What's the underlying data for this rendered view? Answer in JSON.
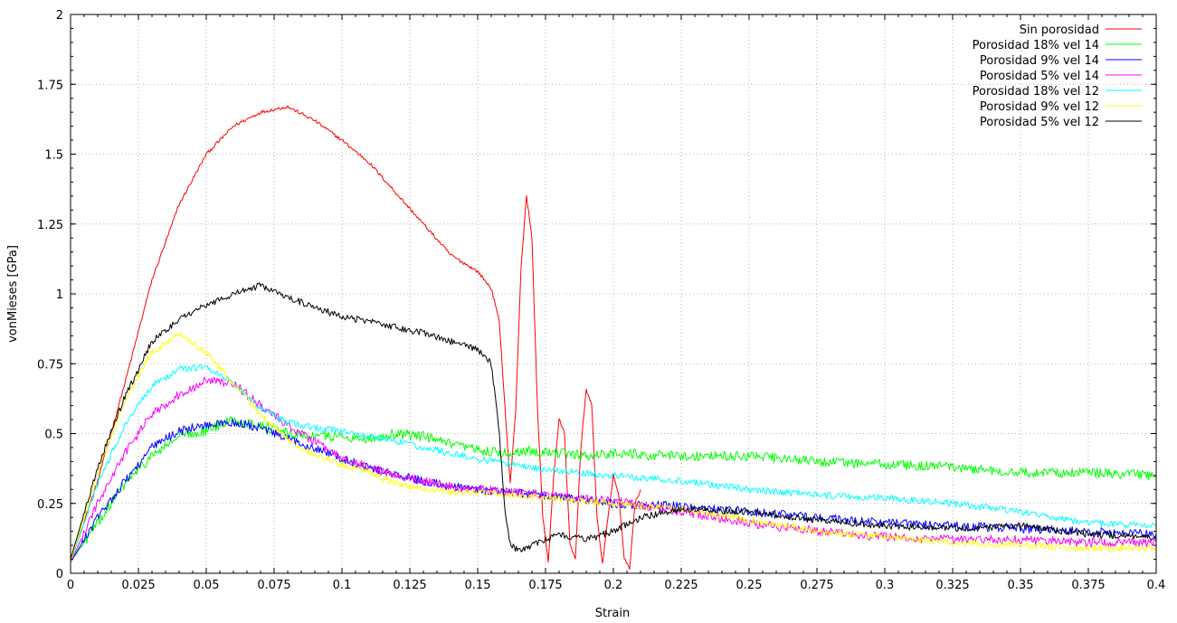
{
  "chart_data": {
    "type": "line",
    "title": "",
    "xlabel": "Strain",
    "ylabel": "vonMieses [GPa]",
    "xlim": [
      0,
      0.4
    ],
    "ylim": [
      0,
      2
    ],
    "grid": true,
    "legend_position": "top-right",
    "x_ticks": [
      "0",
      "0.025",
      "0.05",
      "0.075",
      "0.1",
      "0.125",
      "0.15",
      "0.175",
      "0.2",
      "0.225",
      "0.25",
      "0.275",
      "0.3",
      "0.325",
      "0.35",
      "0.375",
      "0.4"
    ],
    "y_ticks": [
      "0",
      "0.25",
      "0.5",
      "0.75",
      "1",
      "1.25",
      "1.5",
      "1.75",
      "2"
    ],
    "series": [
      {
        "name": "Sin porosidad",
        "color": "#ff0000",
        "noise": 0.006,
        "points": [
          [
            0,
            0.04
          ],
          [
            0.01,
            0.33
          ],
          [
            0.02,
            0.68
          ],
          [
            0.03,
            1.05
          ],
          [
            0.04,
            1.32
          ],
          [
            0.05,
            1.5
          ],
          [
            0.06,
            1.6
          ],
          [
            0.07,
            1.65
          ],
          [
            0.08,
            1.67
          ],
          [
            0.09,
            1.62
          ],
          [
            0.1,
            1.55
          ],
          [
            0.11,
            1.47
          ],
          [
            0.12,
            1.36
          ],
          [
            0.13,
            1.25
          ],
          [
            0.14,
            1.14
          ],
          [
            0.15,
            1.08
          ],
          [
            0.155,
            1.02
          ],
          [
            0.158,
            0.9
          ],
          [
            0.16,
            0.6
          ],
          [
            0.162,
            0.32
          ],
          [
            0.164,
            0.58
          ],
          [
            0.166,
            1.1
          ],
          [
            0.168,
            1.35
          ],
          [
            0.17,
            1.2
          ],
          [
            0.172,
            0.6
          ],
          [
            0.174,
            0.2
          ],
          [
            0.176,
            0.04
          ],
          [
            0.178,
            0.35
          ],
          [
            0.18,
            0.55
          ],
          [
            0.182,
            0.5
          ],
          [
            0.184,
            0.1
          ],
          [
            0.186,
            0.05
          ],
          [
            0.188,
            0.45
          ],
          [
            0.19,
            0.66
          ],
          [
            0.192,
            0.6
          ],
          [
            0.194,
            0.2
          ],
          [
            0.196,
            0.03
          ],
          [
            0.198,
            0.2
          ],
          [
            0.2,
            0.35
          ],
          [
            0.202,
            0.28
          ],
          [
            0.204,
            0.05
          ],
          [
            0.206,
            0.02
          ],
          [
            0.208,
            0.25
          ],
          [
            0.21,
            0.3
          ]
        ]
      },
      {
        "name": "Porosidad 18% vel 14",
        "color": "#00ff00",
        "noise": 0.018,
        "points": [
          [
            0,
            0.04
          ],
          [
            0.01,
            0.18
          ],
          [
            0.02,
            0.32
          ],
          [
            0.03,
            0.42
          ],
          [
            0.04,
            0.49
          ],
          [
            0.05,
            0.51
          ],
          [
            0.06,
            0.55
          ],
          [
            0.07,
            0.53
          ],
          [
            0.08,
            0.5
          ],
          [
            0.09,
            0.49
          ],
          [
            0.1,
            0.49
          ],
          [
            0.11,
            0.48
          ],
          [
            0.12,
            0.5
          ],
          [
            0.13,
            0.49
          ],
          [
            0.14,
            0.46
          ],
          [
            0.15,
            0.44
          ],
          [
            0.16,
            0.43
          ],
          [
            0.17,
            0.44
          ],
          [
            0.18,
            0.43
          ],
          [
            0.19,
            0.42
          ],
          [
            0.2,
            0.43
          ],
          [
            0.22,
            0.42
          ],
          [
            0.25,
            0.42
          ],
          [
            0.275,
            0.4
          ],
          [
            0.3,
            0.39
          ],
          [
            0.325,
            0.38
          ],
          [
            0.35,
            0.36
          ],
          [
            0.375,
            0.36
          ],
          [
            0.4,
            0.35
          ]
        ]
      },
      {
        "name": "Porosidad 9% vel 14",
        "color": "#0000ff",
        "noise": 0.016,
        "points": [
          [
            0,
            0.04
          ],
          [
            0.01,
            0.2
          ],
          [
            0.02,
            0.33
          ],
          [
            0.03,
            0.45
          ],
          [
            0.04,
            0.51
          ],
          [
            0.05,
            0.53
          ],
          [
            0.06,
            0.54
          ],
          [
            0.07,
            0.52
          ],
          [
            0.08,
            0.48
          ],
          [
            0.09,
            0.45
          ],
          [
            0.1,
            0.41
          ],
          [
            0.11,
            0.38
          ],
          [
            0.12,
            0.35
          ],
          [
            0.13,
            0.33
          ],
          [
            0.14,
            0.31
          ],
          [
            0.15,
            0.3
          ],
          [
            0.16,
            0.29
          ],
          [
            0.175,
            0.28
          ],
          [
            0.2,
            0.25
          ],
          [
            0.225,
            0.24
          ],
          [
            0.25,
            0.22
          ],
          [
            0.275,
            0.2
          ],
          [
            0.3,
            0.18
          ],
          [
            0.325,
            0.17
          ],
          [
            0.35,
            0.16
          ],
          [
            0.375,
            0.15
          ],
          [
            0.4,
            0.14
          ]
        ]
      },
      {
        "name": "Porosidad 5% vel 14",
        "color": "#ff00ff",
        "noise": 0.016,
        "points": [
          [
            0,
            0.04
          ],
          [
            0.01,
            0.25
          ],
          [
            0.02,
            0.43
          ],
          [
            0.03,
            0.57
          ],
          [
            0.04,
            0.64
          ],
          [
            0.05,
            0.69
          ],
          [
            0.06,
            0.68
          ],
          [
            0.07,
            0.6
          ],
          [
            0.08,
            0.53
          ],
          [
            0.09,
            0.47
          ],
          [
            0.1,
            0.41
          ],
          [
            0.11,
            0.38
          ],
          [
            0.12,
            0.35
          ],
          [
            0.13,
            0.33
          ],
          [
            0.14,
            0.31
          ],
          [
            0.15,
            0.3
          ],
          [
            0.175,
            0.28
          ],
          [
            0.2,
            0.26
          ],
          [
            0.225,
            0.22
          ],
          [
            0.25,
            0.18
          ],
          [
            0.275,
            0.15
          ],
          [
            0.3,
            0.13
          ],
          [
            0.325,
            0.12
          ],
          [
            0.35,
            0.12
          ],
          [
            0.375,
            0.11
          ],
          [
            0.4,
            0.11
          ]
        ]
      },
      {
        "name": "Porosidad 18% vel 12",
        "color": "#00ffff",
        "noise": 0.012,
        "points": [
          [
            0,
            0.04
          ],
          [
            0.01,
            0.32
          ],
          [
            0.02,
            0.53
          ],
          [
            0.03,
            0.67
          ],
          [
            0.04,
            0.73
          ],
          [
            0.05,
            0.74
          ],
          [
            0.06,
            0.68
          ],
          [
            0.07,
            0.59
          ],
          [
            0.08,
            0.54
          ],
          [
            0.09,
            0.52
          ],
          [
            0.1,
            0.51
          ],
          [
            0.11,
            0.49
          ],
          [
            0.12,
            0.47
          ],
          [
            0.13,
            0.45
          ],
          [
            0.14,
            0.43
          ],
          [
            0.15,
            0.41
          ],
          [
            0.175,
            0.37
          ],
          [
            0.2,
            0.35
          ],
          [
            0.225,
            0.33
          ],
          [
            0.25,
            0.3
          ],
          [
            0.275,
            0.28
          ],
          [
            0.3,
            0.27
          ],
          [
            0.325,
            0.25
          ],
          [
            0.35,
            0.22
          ],
          [
            0.375,
            0.18
          ],
          [
            0.4,
            0.17
          ]
        ]
      },
      {
        "name": "Porosidad 9% vel 12",
        "color": "#ffff00",
        "noise": 0.012,
        "points": [
          [
            0,
            0.04
          ],
          [
            0.01,
            0.36
          ],
          [
            0.02,
            0.62
          ],
          [
            0.03,
            0.79
          ],
          [
            0.04,
            0.86
          ],
          [
            0.05,
            0.79
          ],
          [
            0.06,
            0.68
          ],
          [
            0.07,
            0.57
          ],
          [
            0.08,
            0.48
          ],
          [
            0.09,
            0.42
          ],
          [
            0.1,
            0.39
          ],
          [
            0.11,
            0.36
          ],
          [
            0.12,
            0.32
          ],
          [
            0.13,
            0.3
          ],
          [
            0.14,
            0.29
          ],
          [
            0.15,
            0.29
          ],
          [
            0.175,
            0.27
          ],
          [
            0.2,
            0.25
          ],
          [
            0.225,
            0.23
          ],
          [
            0.25,
            0.19
          ],
          [
            0.275,
            0.15
          ],
          [
            0.3,
            0.13
          ],
          [
            0.325,
            0.11
          ],
          [
            0.35,
            0.1
          ],
          [
            0.375,
            0.09
          ],
          [
            0.4,
            0.09
          ]
        ]
      },
      {
        "name": "Porosidad 5% vel 12",
        "color": "#000000",
        "noise": 0.012,
        "points": [
          [
            0,
            0.05
          ],
          [
            0.01,
            0.38
          ],
          [
            0.02,
            0.63
          ],
          [
            0.03,
            0.83
          ],
          [
            0.04,
            0.91
          ],
          [
            0.05,
            0.96
          ],
          [
            0.06,
            1.0
          ],
          [
            0.07,
            1.03
          ],
          [
            0.08,
            0.99
          ],
          [
            0.09,
            0.95
          ],
          [
            0.1,
            0.92
          ],
          [
            0.11,
            0.9
          ],
          [
            0.12,
            0.88
          ],
          [
            0.13,
            0.86
          ],
          [
            0.14,
            0.83
          ],
          [
            0.15,
            0.8
          ],
          [
            0.155,
            0.75
          ],
          [
            0.158,
            0.5
          ],
          [
            0.16,
            0.22
          ],
          [
            0.162,
            0.1
          ],
          [
            0.165,
            0.08
          ],
          [
            0.17,
            0.1
          ],
          [
            0.175,
            0.12
          ],
          [
            0.18,
            0.14
          ],
          [
            0.19,
            0.12
          ],
          [
            0.2,
            0.15
          ],
          [
            0.21,
            0.2
          ],
          [
            0.225,
            0.23
          ],
          [
            0.25,
            0.22
          ],
          [
            0.275,
            0.19
          ],
          [
            0.3,
            0.17
          ],
          [
            0.325,
            0.16
          ],
          [
            0.35,
            0.17
          ],
          [
            0.375,
            0.14
          ],
          [
            0.4,
            0.13
          ]
        ]
      }
    ]
  }
}
